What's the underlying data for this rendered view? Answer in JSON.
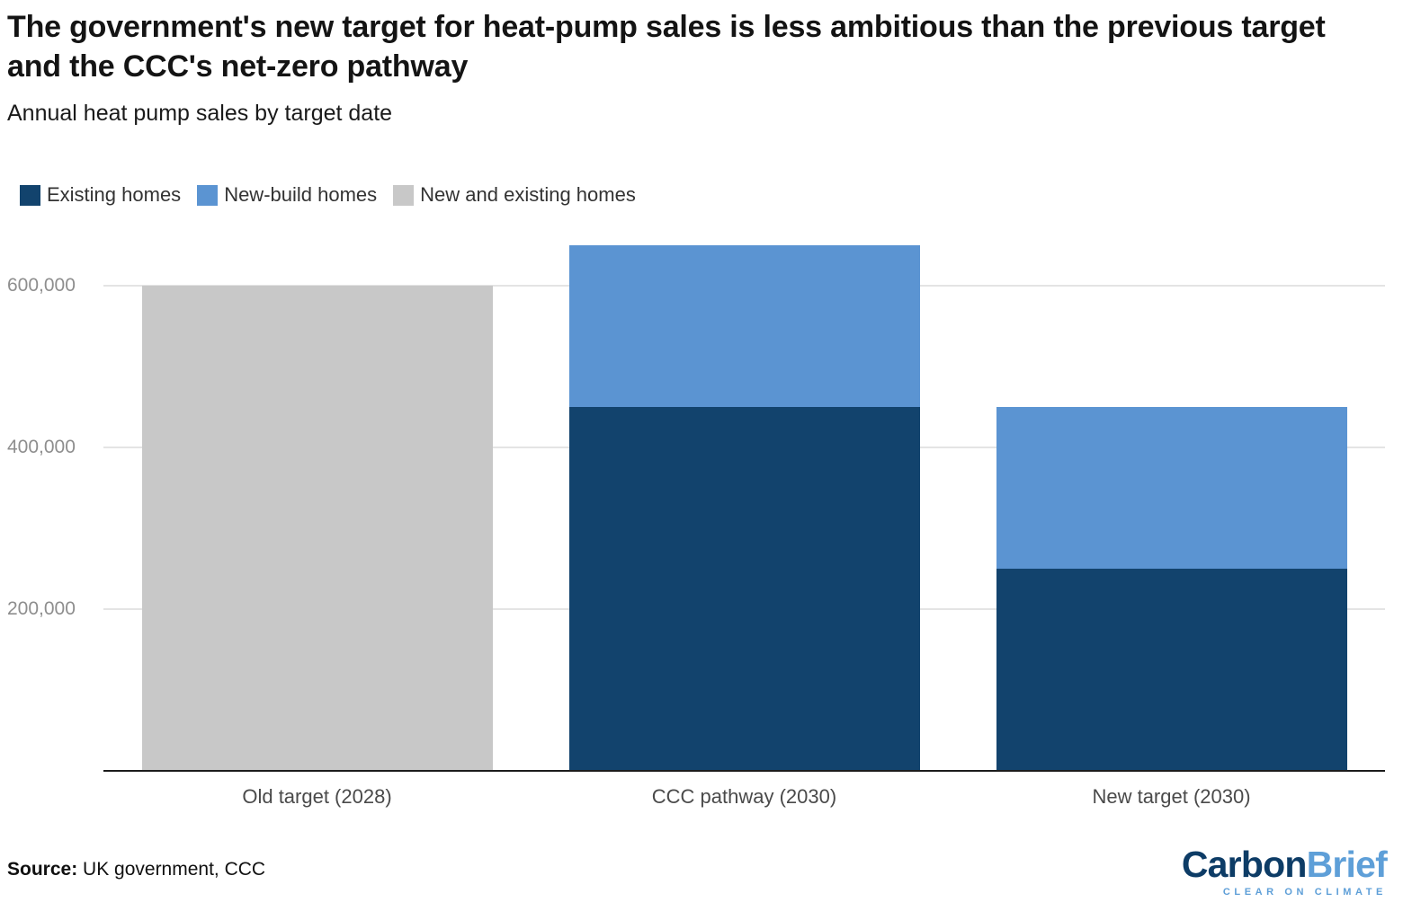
{
  "header": {
    "title": "The government's new target for heat-pump sales is less ambitious than the previous target and the CCC's net-zero pathway",
    "subtitle": "Annual heat pump sales by target date"
  },
  "legend": [
    {
      "label": "Existing homes",
      "color": "#12436D"
    },
    {
      "label": "New-build homes",
      "color": "#5B94D2"
    },
    {
      "label": "New and existing homes",
      "color": "#C8C8C8"
    }
  ],
  "chart_data": {
    "type": "bar",
    "stacked": true,
    "title": "Annual heat pump sales by target date",
    "xlabel": "",
    "ylabel": "",
    "ylim": [
      0,
      675000
    ],
    "yticks": [
      200000,
      400000,
      600000
    ],
    "ytick_labels": [
      "200,000",
      "400,000",
      "600,000"
    ],
    "grid": true,
    "legend_position": "top-left",
    "categories": [
      "Old target (2028)",
      "CCC pathway (2030)",
      "New target (2030)"
    ],
    "series": [
      {
        "name": "Existing homes",
        "color": "#12436D",
        "values": [
          0,
          450000,
          250000
        ]
      },
      {
        "name": "New-build homes",
        "color": "#5B94D2",
        "values": [
          0,
          200000,
          200000
        ]
      },
      {
        "name": "New and existing homes",
        "color": "#C8C8C8",
        "values": [
          600000,
          0,
          0
        ]
      }
    ],
    "totals": [
      600000,
      650000,
      450000
    ]
  },
  "footer": {
    "source_label": "Source:",
    "source_text": " UK government, CCC"
  },
  "logo": {
    "part1": "Carbon",
    "part2": "Brief",
    "tagline": "CLEAR ON CLIMATE",
    "dark_color": "#0d3c66",
    "light_color": "#5e9fd8"
  }
}
